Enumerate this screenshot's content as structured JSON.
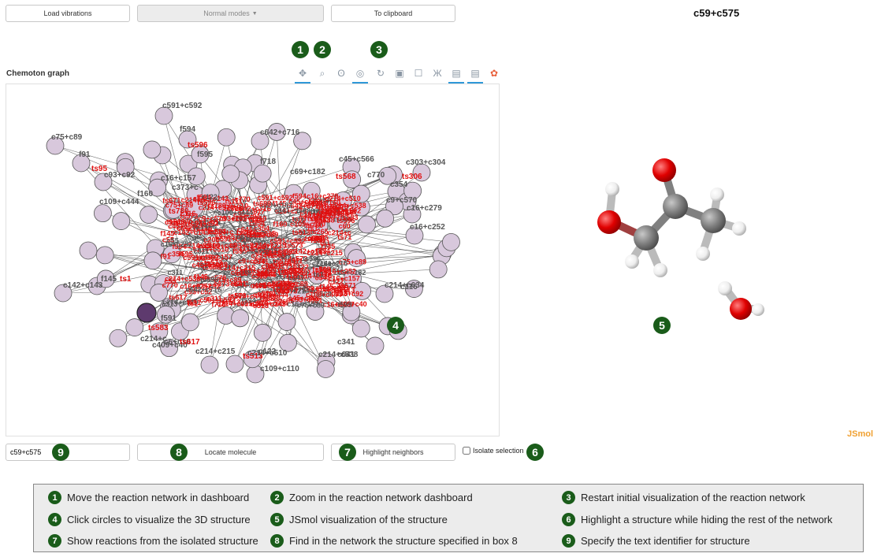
{
  "toolbar": {
    "load_vibrations": "Load vibrations",
    "normal_modes": "Normal modes",
    "to_clipboard": "To clipboard"
  },
  "structure_title": "c59+c575",
  "graph": {
    "title": "Chemoton graph",
    "node_labels": [
      "c591+c592",
      "c75+c89",
      "f594",
      "ts596",
      "c642+c716",
      "f91",
      "f595",
      "ts95",
      "c93+c92",
      "c16+c157",
      "c45+c566",
      "c303+c304",
      "c770",
      "ts306",
      "f718",
      "c354",
      "c69+c182",
      "ts568",
      "c373+c",
      "f160",
      "c109+c444",
      "c9+c570",
      "c16+c279",
      "ts780",
      "c16+c252",
      "c142+c143",
      "f145",
      "ts1",
      "c214+c634",
      "c116",
      "f591",
      "ts583",
      "c214+c",
      "c409+c40",
      "c6+c10",
      "c214+c215",
      "ts617",
      "c341",
      "c641",
      "c214+c538",
      "ts513",
      "c109+c110",
      "c214+c510",
      "c122",
      "c55",
      "c60",
      "c205",
      "c313",
      "c311",
      "ts573",
      "ts71",
      "ts265",
      "ts688",
      "ts671",
      "ts111"
    ],
    "selected_node": "c59+c575"
  },
  "graph_tools": [
    {
      "name": "move-tool-icon",
      "glyph": "✥",
      "active": true
    },
    {
      "name": "zoom-tool-icon",
      "glyph": "⌕",
      "active": false
    },
    {
      "name": "lasso-tool-icon",
      "glyph": "ʘ",
      "active": false
    },
    {
      "name": "reset-view-icon",
      "glyph": "◎",
      "active": true
    },
    {
      "name": "refresh-icon",
      "glyph": "↻",
      "active": false
    },
    {
      "name": "save-icon",
      "glyph": "▣",
      "active": false
    },
    {
      "name": "box-select-icon",
      "glyph": "☐",
      "active": false
    },
    {
      "name": "hover-icon",
      "glyph": "Ж",
      "active": false
    },
    {
      "name": "comment-icon",
      "glyph": "▤",
      "active": true
    },
    {
      "name": "comment2-icon",
      "glyph": "▤",
      "active": true
    },
    {
      "name": "bokeh-logo-icon",
      "glyph": "✿",
      "active": false
    }
  ],
  "badges": {
    "b1": "1",
    "b2": "2",
    "b3": "3",
    "b4": "4",
    "b5": "5",
    "b6": "6",
    "b7": "7",
    "b8": "8",
    "b9": "9"
  },
  "jsmol_label": "JSmol",
  "controls": {
    "identifier_value": "c59+c575",
    "locate_molecule": "Locate molecule",
    "highlight_neighbors": "Highlight neighbors",
    "isolate_selection": "Isolate selection",
    "isolate_checked": false
  },
  "legend": [
    {
      "num": "1",
      "text": "Move the reaction network in dashboard"
    },
    {
      "num": "2",
      "text": "Zoom in the reaction network dashboard"
    },
    {
      "num": "3",
      "text": "Restart initial visualization of the reaction network"
    },
    {
      "num": "4",
      "text": "Click circles to visualize the 3D structure"
    },
    {
      "num": "5",
      "text": "JSmol visualization of the structure"
    },
    {
      "num": "6",
      "text": "Highlight a structure while hiding the rest of the network"
    },
    {
      "num": "7",
      "text": "Show reactions from the isolated structure"
    },
    {
      "num": "8",
      "text": "Find in the network the structure specified in box 8"
    },
    {
      "num": "9",
      "text": "Specify the text identifier for structure"
    }
  ],
  "colors": {
    "node_fill": "#d8c8dc",
    "node_selected": "#5e3a6e",
    "edge": "#333333",
    "ts_label": "#e01010",
    "node_label": "#555555",
    "badge": "#1a5c1a",
    "oxygen": "#e00000",
    "carbon": "#808080",
    "hydrogen": "#f0f0f0"
  }
}
